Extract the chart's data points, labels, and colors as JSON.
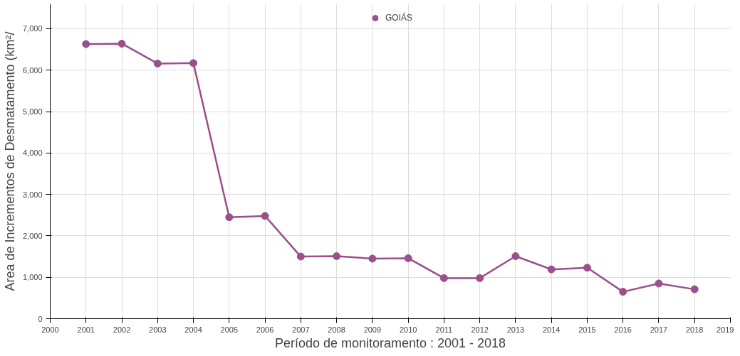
{
  "chart_data": {
    "type": "line",
    "xlabel": "Período de monitoramento : 2001 - 2018",
    "ylabel": "Area de Incrementos de Desmatamento (km²/",
    "x": [
      2001,
      2002,
      2003,
      2004,
      2005,
      2006,
      2007,
      2008,
      2009,
      2010,
      2011,
      2012,
      2013,
      2014,
      2015,
      2016,
      2017,
      2018
    ],
    "series": [
      {
        "name": "GOIÁS",
        "color": "#9b4f8b",
        "values": [
          6630,
          6640,
          6160,
          6170,
          2450,
          2480,
          1500,
          1510,
          1450,
          1460,
          980,
          980,
          1510,
          1190,
          1230,
          650,
          850,
          710
        ]
      }
    ],
    "xlim": [
      2000,
      2019
    ],
    "xticks": [
      2000,
      2001,
      2002,
      2003,
      2004,
      2005,
      2006,
      2007,
      2008,
      2009,
      2010,
      2011,
      2012,
      2013,
      2014,
      2015,
      2016,
      2017,
      2018,
      2019
    ],
    "ylim": [
      0,
      7600
    ],
    "yticks": [
      {
        "value": 0,
        "label": "0"
      },
      {
        "value": 1000,
        "label": "1,000"
      },
      {
        "value": 2000,
        "label": "2,000"
      },
      {
        "value": 3000,
        "label": "3,000"
      },
      {
        "value": 4000,
        "label": "4,000"
      },
      {
        "value": 5000,
        "label": "5,000"
      },
      {
        "value": 6000,
        "label": "6,000"
      },
      {
        "value": 7000,
        "label": "7,000"
      }
    ],
    "grid": true,
    "legend": "top",
    "marker": "circle",
    "line_style": "solid"
  }
}
